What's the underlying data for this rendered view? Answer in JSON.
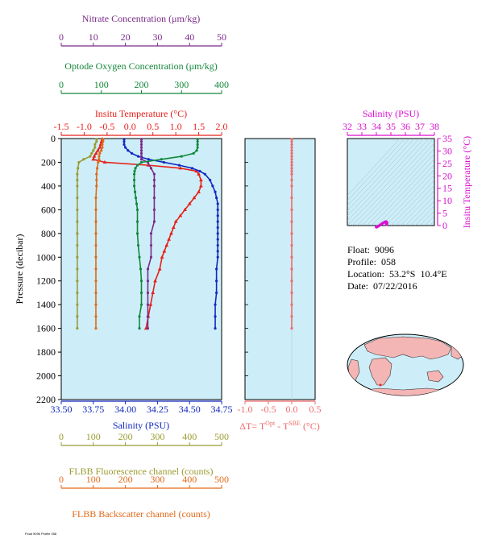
{
  "colors": {
    "nitrate": "#7b2a8a",
    "oxygen": "#13873a",
    "temperature": "#e8201a",
    "salinity": "#1029c0",
    "deltaT": "#ef6a6a",
    "fluorescence": "#9b9b32",
    "backscatter": "#e06a18",
    "tsaxis": "#d90fcf",
    "panel": "#cdeef8"
  },
  "axes": {
    "nitrate": {
      "label": "Nitrate Concentration (μm/kg)",
      "range": [
        0,
        50
      ],
      "ticks": [
        "0",
        "10",
        "20",
        "30",
        "40",
        "50"
      ]
    },
    "oxygen": {
      "label": "Optode Oxygen Concentration (μm/kg)",
      "range": [
        0,
        400
      ],
      "ticks": [
        "0",
        "100",
        "200",
        "300",
        "400"
      ]
    },
    "temperature": {
      "label": "Insitu Temperature (°C)",
      "range": [
        -1.5,
        2.0
      ],
      "ticks": [
        "-1.5",
        "-1.0",
        "-0.5",
        "0.0",
        "0.5",
        "1.0",
        "1.5",
        "2.0"
      ]
    },
    "salinity": {
      "label": "Salinity (PSU)",
      "range": [
        33.5,
        34.75
      ],
      "ticks": [
        "33.50",
        "33.75",
        "34.00",
        "34.25",
        "34.50",
        "34.75"
      ]
    },
    "pressure": {
      "label": "Pressure (decibar)",
      "range": [
        0,
        2200
      ],
      "ticks": [
        "0",
        "200",
        "400",
        "600",
        "800",
        "1000",
        "1200",
        "1400",
        "1600",
        "1800",
        "2000",
        "2200"
      ]
    },
    "deltaT": {
      "label_prefix": "ΔT= T",
      "sup1": "Opt",
      "label_mid": " - T",
      "sup2": "SBE",
      "label_suffix": " (°C)",
      "range": [
        -1.0,
        0.5
      ],
      "ticks": [
        "-1.0",
        "-0.5",
        "0.0",
        "0.5"
      ]
    },
    "fluorescence": {
      "label": "FLBB Fluorescence channel (counts)",
      "range": [
        0,
        500
      ],
      "ticks": [
        "0",
        "100",
        "200",
        "300",
        "400",
        "500"
      ]
    },
    "backscatter": {
      "label": "FLBB Backscatter channel (counts)",
      "range": [
        0,
        500
      ],
      "ticks": [
        "0",
        "100",
        "200",
        "300",
        "400",
        "500"
      ]
    },
    "ts_salinity": {
      "label": "Salinity (PSU)",
      "range": [
        32,
        38
      ],
      "ticks": [
        "32",
        "33",
        "34",
        "35",
        "36",
        "37",
        "38"
      ]
    },
    "ts_temperature": {
      "label": "Insitu Temperature (°C)",
      "range": [
        0,
        35
      ],
      "ticks": [
        "0",
        "5",
        "10",
        "15",
        "20",
        "25",
        "30",
        "35"
      ]
    }
  },
  "info": {
    "float_label": "Float:",
    "float_value": "9096",
    "profile_label": "Profile:",
    "profile_value": "058",
    "location_label": "Location:",
    "location_value": "53.2°S  10.4°E",
    "date_label": "Date:",
    "date_value": "07/22/2016"
  },
  "footer": "Float 9096 Profile 058",
  "chart_data": [
    {
      "type": "line",
      "name_hint": "profiles",
      "ylim": [
        0,
        2200
      ],
      "series": [
        {
          "key": "temperature",
          "marker": "triangle",
          "p": [
            5,
            25,
            50,
            75,
            100,
            125,
            150,
            175,
            200,
            225,
            250,
            275,
            300,
            350,
            400,
            450,
            500,
            550,
            600,
            650,
            700,
            750,
            800,
            850,
            900,
            950,
            1000,
            1100,
            1200,
            1300,
            1400,
            1500,
            1600
          ],
          "v": [
            -0.6,
            -0.62,
            -0.64,
            -0.66,
            -0.7,
            -0.74,
            -0.78,
            -0.8,
            -0.55,
            0.4,
            1.1,
            1.45,
            1.5,
            1.55,
            1.55,
            1.5,
            1.4,
            1.3,
            1.2,
            1.1,
            1.0,
            0.95,
            0.9,
            0.85,
            0.8,
            0.75,
            0.7,
            0.65,
            0.55,
            0.5,
            0.45,
            0.4,
            0.35
          ]
        },
        {
          "key": "salinity",
          "marker": "dot",
          "p": [
            5,
            25,
            50,
            75,
            100,
            125,
            150,
            175,
            200,
            225,
            250,
            275,
            300,
            350,
            400,
            450,
            500,
            550,
            600,
            650,
            700,
            750,
            800,
            850,
            900,
            950,
            1000,
            1100,
            1200,
            1300,
            1400,
            1500,
            1600
          ],
          "v": [
            33.99,
            33.99,
            33.99,
            34.0,
            34.02,
            34.05,
            34.1,
            34.18,
            34.3,
            34.42,
            34.52,
            34.58,
            34.62,
            34.66,
            34.68,
            34.7,
            34.71,
            34.72,
            34.72,
            34.72,
            34.72,
            34.72,
            34.72,
            34.72,
            34.72,
            34.72,
            34.72,
            34.71,
            34.71,
            34.71,
            34.7,
            34.7,
            34.7
          ]
        },
        {
          "key": "nitrate",
          "marker": "dot",
          "p": [
            5,
            25,
            50,
            75,
            100,
            125,
            150,
            175,
            200,
            250,
            300,
            350,
            400,
            500,
            600,
            700,
            800,
            900,
            1000,
            1100,
            1200,
            1300,
            1400,
            1500,
            1600
          ],
          "v": [
            25,
            25,
            25,
            25,
            25,
            25,
            25,
            25,
            27,
            28,
            29,
            29,
            29,
            29,
            29,
            29,
            28,
            28,
            28,
            27,
            27,
            27,
            27,
            27,
            27
          ]
        },
        {
          "key": "oxygen",
          "marker": "dot",
          "p": [
            5,
            25,
            50,
            75,
            100,
            125,
            150,
            175,
            200,
            225,
            250,
            275,
            300,
            350,
            400,
            450,
            500,
            550,
            600,
            700,
            800,
            900,
            1000,
            1100,
            1200,
            1300,
            1400,
            1500,
            1600
          ],
          "v": [
            340,
            340,
            340,
            340,
            338,
            330,
            300,
            250,
            200,
            190,
            185,
            183,
            182,
            182,
            182,
            184,
            186,
            188,
            190,
            190,
            190,
            192,
            195,
            198,
            200,
            200,
            200,
            195,
            195
          ]
        },
        {
          "key": "fluorescence",
          "marker": "dot",
          "p": [
            5,
            25,
            50,
            75,
            100,
            125,
            150,
            175,
            200,
            250,
            300,
            350,
            400,
            500,
            600,
            700,
            800,
            900,
            1000,
            1100,
            1200,
            1300,
            1400,
            1500,
            1600
          ],
          "v": [
            110,
            110,
            105,
            105,
            100,
            95,
            90,
            70,
            55,
            52,
            50,
            50,
            50,
            50,
            50,
            50,
            50,
            50,
            50,
            50,
            50,
            50,
            50,
            50,
            50
          ]
        },
        {
          "key": "backscatter",
          "marker": "dot",
          "p": [
            5,
            25,
            50,
            75,
            100,
            125,
            150,
            175,
            200,
            250,
            300,
            350,
            400,
            500,
            600,
            700,
            800,
            900,
            1000,
            1100,
            1200,
            1300,
            1400,
            1500,
            1600
          ],
          "v": [
            130,
            130,
            128,
            128,
            125,
            120,
            118,
            118,
            115,
            112,
            110,
            110,
            110,
            108,
            108,
            108,
            108,
            108,
            108,
            108,
            108,
            108,
            108,
            108,
            108
          ]
        }
      ]
    },
    {
      "type": "line",
      "name_hint": "deltaT",
      "series": [
        {
          "key": "deltaT",
          "marker": "dot",
          "p": [
            5,
            25,
            50,
            75,
            100,
            125,
            150,
            175,
            200,
            225,
            250,
            275,
            300,
            350,
            400,
            500,
            600,
            700,
            800,
            900,
            1000,
            1100,
            1200,
            1300,
            1400,
            1500,
            1600
          ],
          "v": [
            0,
            0,
            0,
            0,
            0,
            0,
            0,
            0,
            0,
            0,
            0,
            0,
            0,
            0,
            0,
            0,
            0,
            0,
            0,
            0,
            0,
            0,
            0,
            0,
            0,
            0,
            0
          ]
        }
      ]
    },
    {
      "type": "scatter",
      "name_hint": "ts_diagram",
      "xlim": [
        32,
        38
      ],
      "ylim": [
        0,
        35
      ],
      "points": [
        [
          34.0,
          -0.6
        ],
        [
          34.05,
          -0.5
        ],
        [
          34.15,
          -0.2
        ],
        [
          34.25,
          0.2
        ],
        [
          34.35,
          0.6
        ],
        [
          34.45,
          1.0
        ],
        [
          34.55,
          1.3
        ],
        [
          34.62,
          1.5
        ],
        [
          34.66,
          1.55
        ],
        [
          34.7,
          1.4
        ],
        [
          34.72,
          1.1
        ],
        [
          34.72,
          0.9
        ],
        [
          34.71,
          0.6
        ],
        [
          34.7,
          0.4
        ]
      ]
    }
  ]
}
